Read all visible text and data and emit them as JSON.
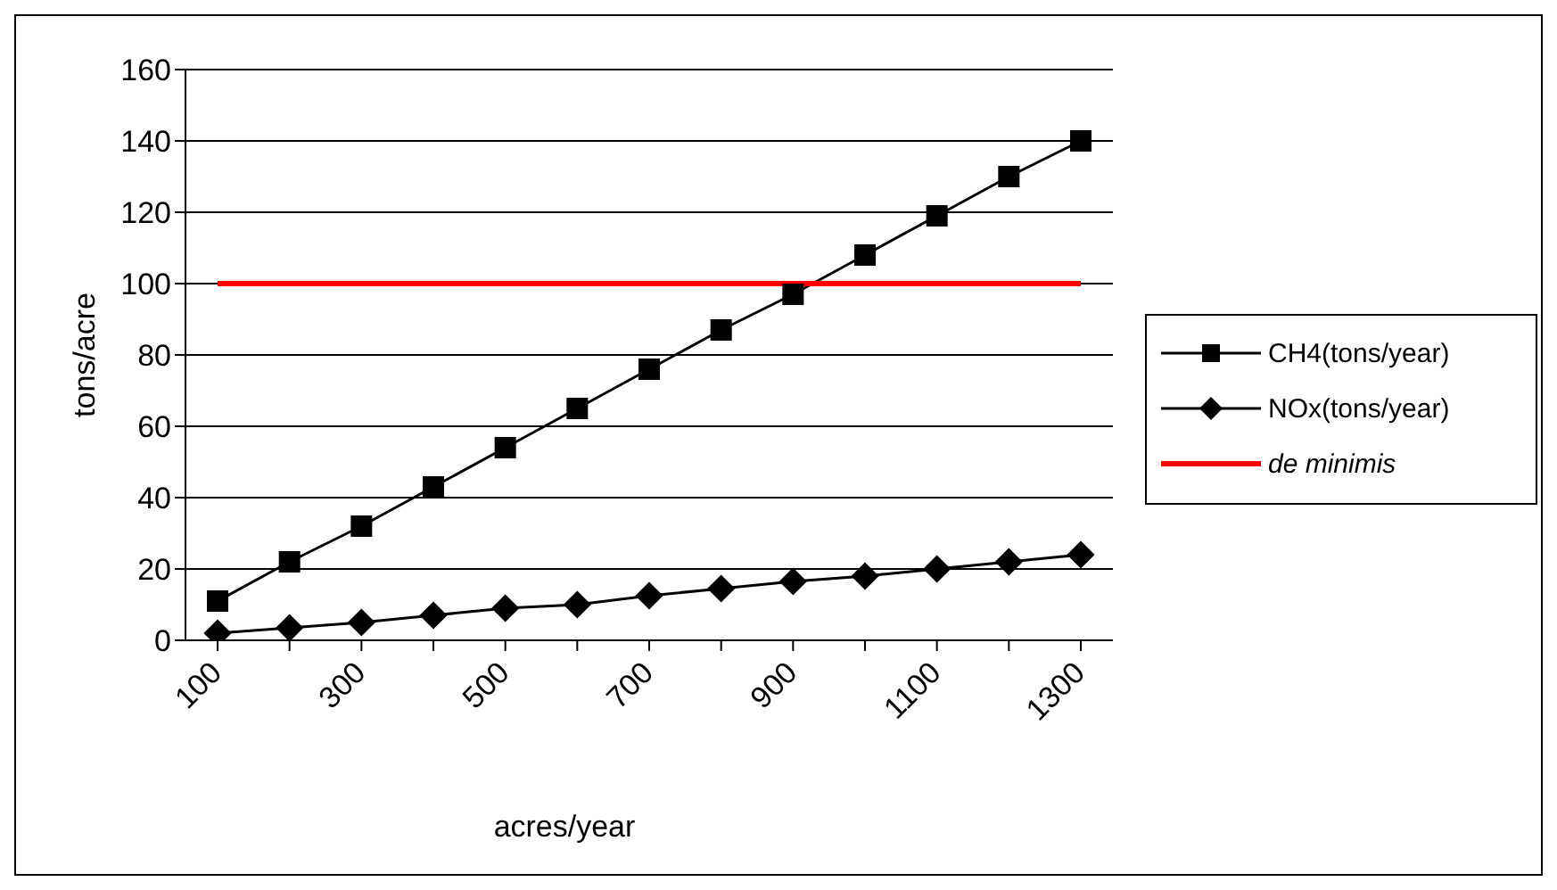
{
  "chart_data": {
    "type": "line",
    "xlabel": "acres/year",
    "ylabel": "tons/acre",
    "categories": [
      "100",
      null,
      "300",
      null,
      "500",
      null,
      "700",
      null,
      "900",
      null,
      "1100",
      null,
      "1300"
    ],
    "series": [
      {
        "name": "CH4(tons/year)",
        "color": "#000000",
        "marker": "square",
        "values": [
          11,
          22,
          32,
          43,
          54,
          65,
          76,
          87,
          97,
          108,
          119,
          130,
          140
        ]
      },
      {
        "name": "NOx(tons/year)",
        "color": "#000000",
        "marker": "diamond",
        "values": [
          2,
          3.5,
          5,
          7,
          9,
          10,
          12.5,
          14.5,
          16.5,
          18,
          20,
          22,
          24
        ]
      },
      {
        "name": "de minimis",
        "color": "#ff0000",
        "marker": "none",
        "values": [
          100,
          100,
          100,
          100,
          100,
          100,
          100,
          100,
          100,
          100,
          100,
          100,
          100
        ]
      }
    ],
    "ylim": [
      0,
      160
    ],
    "yticks": [
      0,
      20,
      40,
      60,
      80,
      100,
      120,
      140,
      160
    ],
    "grid": "y",
    "legend": "right",
    "line_style": "solid"
  }
}
